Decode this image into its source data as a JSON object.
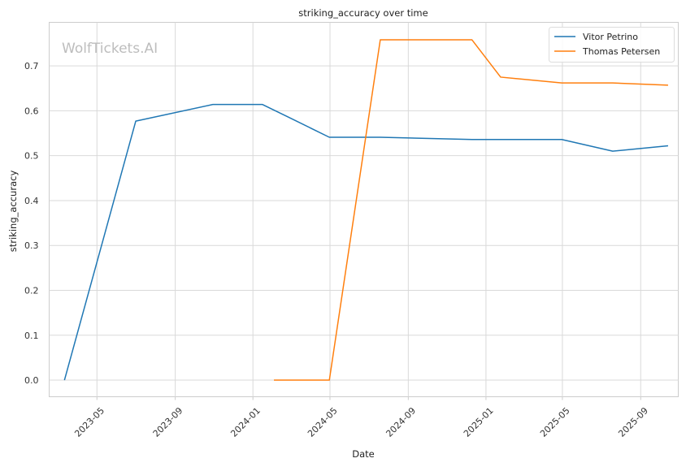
{
  "chart_data": {
    "type": "line",
    "title": "striking_accuracy over time",
    "xlabel": "Date",
    "ylabel": "striking_accuracy",
    "watermark": "WolfTickets.AI",
    "x_ticks": [
      "2023-05",
      "2023-09",
      "2024-01",
      "2024-05",
      "2024-09",
      "2025-01",
      "2025-05",
      "2025-09"
    ],
    "y_ticks": [
      "0.0",
      "0.1",
      "0.2",
      "0.3",
      "0.4",
      "0.5",
      "0.6",
      "0.7"
    ],
    "xlim": [
      "2023-02-15",
      "2025-10-30"
    ],
    "ylim": [
      -0.037,
      0.797
    ],
    "grid": true,
    "legend_position": "top-right",
    "series": [
      {
        "name": "Vitor Petrino",
        "color": "#1f77b4",
        "x": [
          "2023-03-11",
          "2023-07-01",
          "2023-10-30",
          "2024-01-16",
          "2024-02-24",
          "2024-04-30",
          "2024-07-19",
          "2024-12-10",
          "2025-04-30",
          "2025-07-19",
          "2025-10-14"
        ],
        "y": [
          0.0,
          0.577,
          0.614,
          0.614,
          0.587,
          0.541,
          0.541,
          0.536,
          0.536,
          0.51,
          0.522
        ]
      },
      {
        "name": "Thomas Petersen",
        "color": "#ff7f0e",
        "x": [
          "2024-02-03",
          "2024-04-30",
          "2024-07-19",
          "2024-12-10",
          "2025-01-24",
          "2025-04-30",
          "2025-07-19",
          "2025-10-14"
        ],
        "y": [
          0.0,
          0.0,
          0.758,
          0.758,
          0.675,
          0.662,
          0.662,
          0.657
        ]
      }
    ]
  }
}
